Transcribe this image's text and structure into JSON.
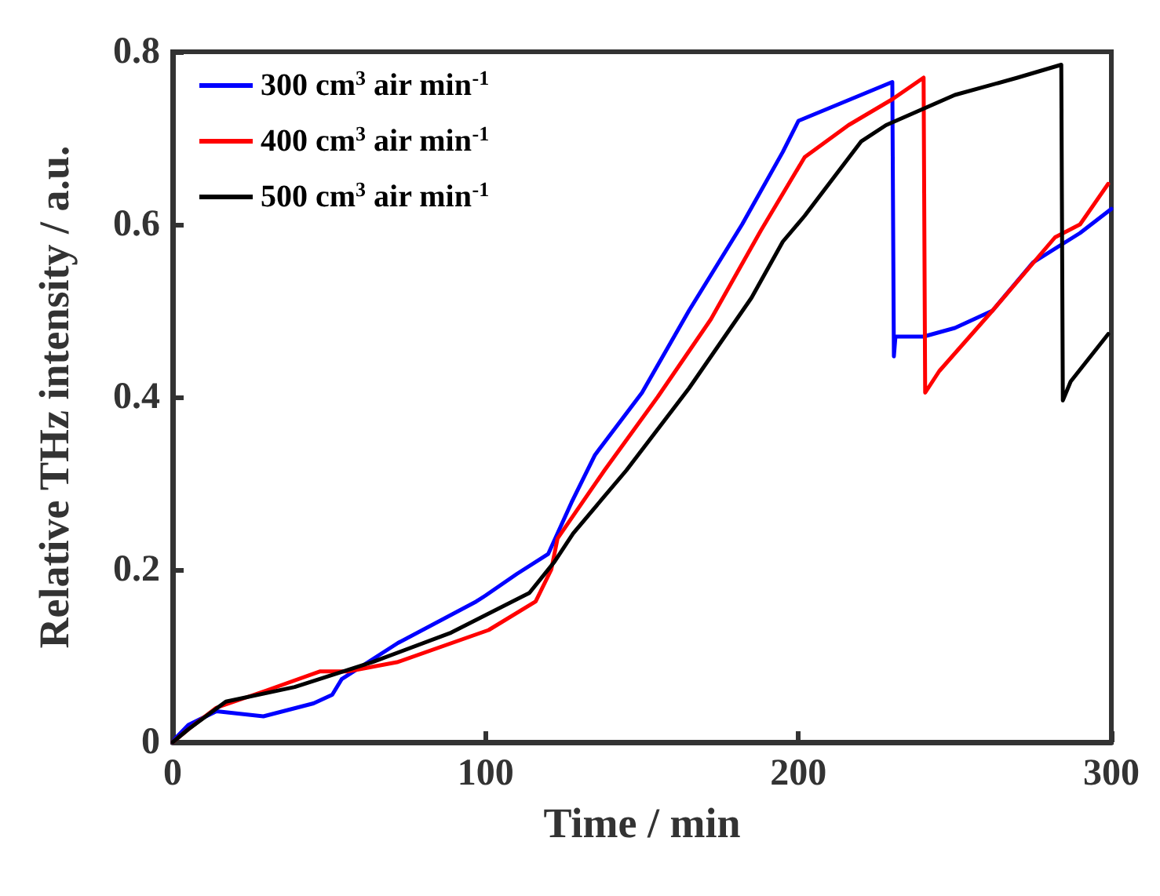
{
  "chart_data": {
    "type": "line",
    "xlabel": "Time / min",
    "ylabel": "Relative THz intensity / a.u.",
    "xlim": [
      0,
      300
    ],
    "xticks": [
      0,
      100,
      200,
      300
    ],
    "ylim": [
      0,
      0.8
    ],
    "yticks": [
      0,
      0.2,
      0.4,
      0.6,
      0.8
    ],
    "grid": false,
    "legend": "top left",
    "marker": "none",
    "line_style": "solid",
    "series": [
      {
        "name": "300 cm$^{3}$ air min$^{-1}$",
        "color": "#0000ff",
        "x": [
          0,
          1,
          5,
          14,
          29,
          45,
          51,
          54,
          72,
          97,
          100,
          110,
          120,
          127.5,
          135,
          150,
          165,
          182,
          195,
          200,
          210,
          220,
          230,
          230.5,
          231,
          240,
          250,
          262,
          275,
          290,
          300
        ],
        "values": [
          0,
          0.005,
          0.02,
          0.036,
          0.03,
          0.045,
          0.055,
          0.073,
          0.115,
          0.163,
          0.17,
          0.195,
          0.218,
          0.278,
          0.333,
          0.405,
          0.5,
          0.6,
          0.684,
          0.72,
          0.735,
          0.75,
          0.765,
          0.447,
          0.47,
          0.47,
          0.48,
          0.5,
          0.556,
          0.59,
          0.618
        ]
      },
      {
        "name": "400 cm$^{3}$ air min$^{-1}$",
        "color": "#ff0000",
        "x": [
          0,
          5,
          14,
          30,
          47,
          56,
          72,
          101,
          116,
          121,
          123,
          138,
          155,
          172,
          188,
          202,
          216,
          230,
          240,
          240.5,
          245,
          262,
          282,
          290,
          299
        ],
        "values": [
          0,
          0.015,
          0.04,
          0.06,
          0.082,
          0.082,
          0.093,
          0.13,
          0.163,
          0.2,
          0.236,
          0.315,
          0.4,
          0.49,
          0.593,
          0.678,
          0.715,
          0.745,
          0.77,
          0.405,
          0.43,
          0.5,
          0.585,
          0.6,
          0.647
        ]
      },
      {
        "name": "500 cm$^{3}$ air min$^{-1}$",
        "color": "#000000",
        "x": [
          0,
          5,
          17,
          39,
          64,
          89,
          114,
          122,
          128,
          145,
          165,
          185,
          195,
          202,
          220,
          228,
          250,
          270,
          284,
          284.5,
          287,
          299
        ],
        "values": [
          0,
          0.015,
          0.047,
          0.064,
          0.093,
          0.127,
          0.173,
          0.209,
          0.242,
          0.315,
          0.41,
          0.515,
          0.58,
          0.61,
          0.696,
          0.715,
          0.75,
          0.77,
          0.785,
          0.396,
          0.418,
          0.473
        ]
      }
    ]
  }
}
